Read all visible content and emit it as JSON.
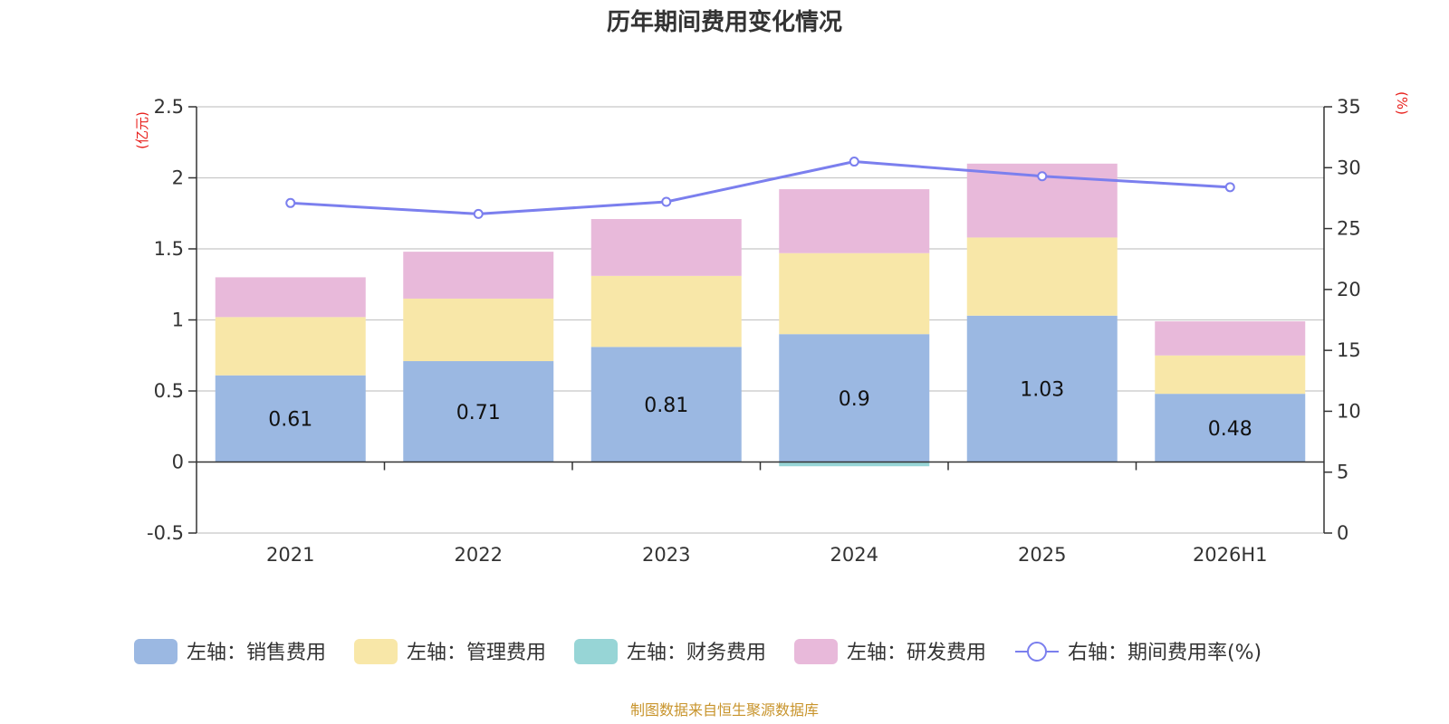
{
  "title": "历年期间费用变化情况",
  "source_note": "制图数据来自恒生聚源数据库",
  "chart_data": {
    "type": "bar",
    "stacked": true,
    "categories": [
      "2021",
      "2022",
      "2023",
      "2024",
      "2025",
      "2026H1"
    ],
    "left_axis": {
      "unit_label": "(亿元)",
      "ylim": [
        -0.5,
        2.5
      ],
      "ticks": [
        "-0.5",
        "0",
        "0.5",
        "1",
        "1.5",
        "2",
        "2.5"
      ],
      "tick_values": [
        -0.5,
        0,
        0.5,
        1,
        1.5,
        2,
        2.5
      ]
    },
    "right_axis": {
      "unit_label": "(%)",
      "ylim": [
        0,
        35
      ],
      "ticks": [
        "0",
        "5",
        "10",
        "15",
        "20",
        "25",
        "30",
        "35"
      ],
      "tick_values": [
        0,
        5,
        10,
        15,
        20,
        25,
        30,
        35
      ]
    },
    "grid": true,
    "legend_position": "bottom",
    "series": [
      {
        "name": "左轴：销售费用",
        "type": "bar",
        "axis": "left",
        "color": "#9bb8e2",
        "values": [
          0.61,
          0.71,
          0.81,
          0.9,
          1.03,
          0.48
        ],
        "labels": [
          "0.61",
          "0.71",
          "0.81",
          "0.9",
          "1.03",
          "0.48"
        ]
      },
      {
        "name": "左轴：管理费用",
        "type": "bar",
        "axis": "left",
        "color": "#f8e7a8",
        "values": [
          0.41,
          0.44,
          0.5,
          0.57,
          0.55,
          0.27
        ]
      },
      {
        "name": "左轴：财务费用",
        "type": "bar",
        "axis": "left",
        "color": "#97d5d6",
        "values": [
          0.0,
          0.0,
          0.0,
          -0.03,
          0.0,
          0.0
        ]
      },
      {
        "name": "左轴：研发费用",
        "type": "bar",
        "axis": "left",
        "color": "#e8b9da",
        "values": [
          0.28,
          0.33,
          0.4,
          0.45,
          0.52,
          0.24
        ]
      },
      {
        "name": "右轴：期间费用率(%)",
        "type": "line",
        "axis": "right",
        "color": "#7b7fee",
        "values": [
          27.1,
          26.2,
          27.2,
          30.5,
          29.3,
          28.4
        ]
      }
    ]
  }
}
